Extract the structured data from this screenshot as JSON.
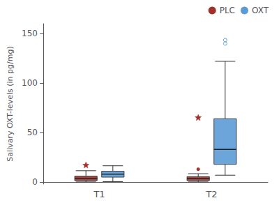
{
  "chart_data": {
    "type": "boxplot",
    "categories": [
      "T1",
      "T2"
    ],
    "ylabel": "Salivary OXT-levels (in pg/mg)",
    "ylim": [
      -2,
      160
    ],
    "yticks": [
      0,
      50,
      100,
      150
    ],
    "grid": false,
    "legend": "upper right",
    "series": [
      {
        "name": "PLC",
        "color": "#a0302a",
        "values": [
          {
            "whislo": 0.2,
            "q1": 1.5,
            "median": 3.5,
            "q3": 6.0,
            "whishi": 11.5
          },
          {
            "whislo": 0.2,
            "q1": 1.5,
            "median": 3.5,
            "q3": 5.5,
            "whishi": 8.5
          }
        ],
        "outliers": [
          [
            {
              "value": 17.0,
              "marker": "star"
            }
          ],
          [
            {
              "value": 65.0,
              "marker": "star"
            },
            {
              "value": 13.0,
              "marker": "circle"
            }
          ]
        ]
      },
      {
        "name": "OXT",
        "color": "#5b9bd5",
        "values": [
          {
            "whislo": 0.5,
            "q1": 5.0,
            "median": 8.0,
            "q3": 11.0,
            "whishi": 16.5
          },
          {
            "whislo": 7.0,
            "q1": 18.0,
            "median": 33.0,
            "q3": 64.0,
            "whishi": 122.0
          }
        ],
        "outliers": [
          [],
          [
            {
              "value": 140.0,
              "marker": "circle_open"
            },
            {
              "value": 143.5,
              "marker": "circle_open"
            }
          ]
        ]
      }
    ]
  }
}
